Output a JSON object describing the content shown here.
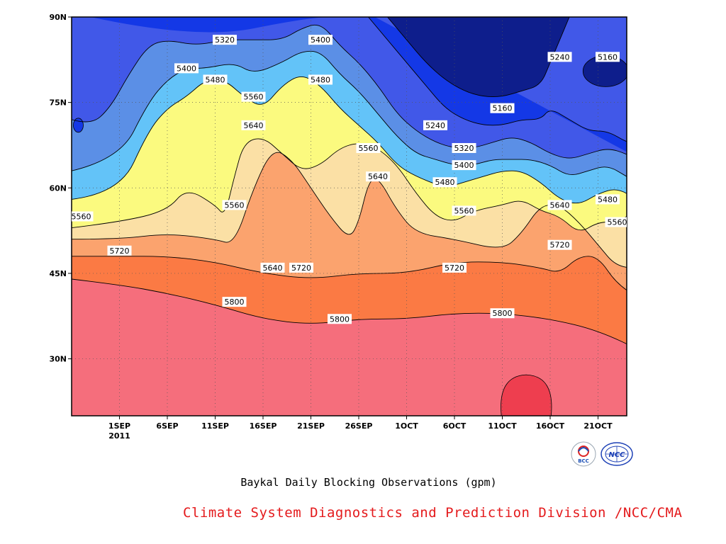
{
  "chart_data": {
    "type": "contour",
    "caption": "Baykal Daily Blocking Observations (gpm)",
    "xlabel": "",
    "ylabel": "",
    "x_ticks": [
      "1SEP",
      "6SEP",
      "11SEP",
      "16SEP",
      "21SEP",
      "26SEP",
      "1OCT",
      "6OCT",
      "11OCT",
      "16OCT",
      "21OCT"
    ],
    "x_year": "2011",
    "y_ticks": [
      "90N",
      "75N",
      "60N",
      "45N",
      "30N"
    ],
    "y_tick_values": [
      90,
      75,
      60,
      45,
      30
    ],
    "x_range_days": [
      -5,
      53
    ],
    "y_range_lat": [
      20,
      90
    ],
    "levels": [
      5160,
      5240,
      5320,
      5400,
      5480,
      5560,
      5640,
      5720,
      5800,
      5880
    ],
    "colors": {
      "band_top": "#0a237a",
      "5160": "#0e1e8c",
      "5240": "#1438e6",
      "5320": "#4158e8",
      "5400": "#5b8fe6",
      "5480": "#63c3f8",
      "5560": "#fbfa7f",
      "5640": "#fbe0a5",
      "5720": "#fba36e",
      "5800": "#fb7a44",
      "5880": "#f56e7c",
      "max": "#ee3e4f",
      "contour_line": "#000000"
    },
    "contours": [
      {
        "level": 5800,
        "points": [
          [
            -5,
            44
          ],
          [
            0,
            43
          ],
          [
            5,
            41.5
          ],
          [
            10,
            39.5
          ],
          [
            15,
            37
          ],
          [
            20,
            36
          ],
          [
            25,
            37
          ],
          [
            30,
            37
          ],
          [
            35,
            38
          ],
          [
            40,
            38
          ],
          [
            45,
            37
          ],
          [
            50,
            35
          ],
          [
            55,
            31
          ],
          [
            58,
            29
          ]
        ]
      },
      {
        "level": 5720,
        "points": [
          [
            -5,
            48
          ],
          [
            0,
            48
          ],
          [
            5,
            48
          ],
          [
            10,
            47
          ],
          [
            15,
            45
          ],
          [
            20,
            44
          ],
          [
            25,
            45
          ],
          [
            30,
            45
          ],
          [
            35,
            47
          ],
          [
            40,
            47
          ],
          [
            44,
            46
          ],
          [
            46,
            45
          ],
          [
            48,
            48
          ],
          [
            50,
            48
          ],
          [
            52,
            43
          ],
          [
            55,
            40
          ],
          [
            58,
            39
          ]
        ]
      },
      {
        "level": 5640,
        "points": [
          [
            -5,
            51
          ],
          [
            0,
            51
          ],
          [
            5,
            52
          ],
          [
            10,
            51
          ],
          [
            12,
            50
          ],
          [
            14,
            60
          ],
          [
            16,
            67
          ],
          [
            18,
            65
          ],
          [
            20,
            60
          ],
          [
            22,
            55
          ],
          [
            24,
            51
          ],
          [
            25,
            54
          ],
          [
            26,
            61
          ],
          [
            27,
            62
          ],
          [
            29,
            56
          ],
          [
            31,
            52
          ],
          [
            35,
            51
          ],
          [
            40,
            49
          ],
          [
            42,
            52
          ],
          [
            44,
            57
          ],
          [
            46,
            57
          ],
          [
            48,
            54
          ],
          [
            50,
            50
          ],
          [
            52,
            46
          ],
          [
            55,
            46
          ],
          [
            58,
            45
          ]
        ]
      },
      {
        "level": 5560,
        "points": [
          [
            -5,
            53
          ],
          [
            0,
            54
          ],
          [
            5,
            56
          ],
          [
            7,
            60
          ],
          [
            10,
            57
          ],
          [
            11,
            55
          ],
          [
            12,
            62
          ],
          [
            13,
            68
          ],
          [
            15,
            69
          ],
          [
            17,
            66
          ],
          [
            19,
            63
          ],
          [
            21,
            64
          ],
          [
            23,
            67
          ],
          [
            25,
            68
          ],
          [
            27,
            67
          ],
          [
            29,
            64
          ],
          [
            31,
            59
          ],
          [
            33,
            55
          ],
          [
            35,
            54
          ],
          [
            37,
            56
          ],
          [
            40,
            57
          ],
          [
            42,
            58
          ],
          [
            44,
            56
          ],
          [
            46,
            55
          ],
          [
            48,
            52
          ],
          [
            50,
            54
          ],
          [
            52,
            54
          ],
          [
            54,
            56
          ],
          [
            55,
            55
          ],
          [
            58,
            54
          ]
        ]
      },
      {
        "level": 5480,
        "points": [
          [
            -5,
            58
          ],
          [
            0,
            59
          ],
          [
            3,
            70
          ],
          [
            5,
            74
          ],
          [
            7,
            76
          ],
          [
            9,
            79
          ],
          [
            11,
            79
          ],
          [
            13,
            76
          ],
          [
            15,
            74
          ],
          [
            17,
            78
          ],
          [
            19,
            80
          ],
          [
            21,
            78
          ],
          [
            23,
            74
          ],
          [
            25,
            71
          ],
          [
            27,
            68
          ],
          [
            29,
            64
          ],
          [
            31,
            62
          ],
          [
            34,
            60
          ],
          [
            36,
            61
          ],
          [
            38,
            62
          ],
          [
            40,
            63
          ],
          [
            42,
            63
          ],
          [
            44,
            61
          ],
          [
            46,
            58
          ],
          [
            48,
            57
          ],
          [
            50,
            59
          ],
          [
            52,
            60
          ],
          [
            54,
            58
          ],
          [
            56,
            57
          ],
          [
            58,
            56
          ]
        ]
      },
      {
        "level": 5400,
        "points": [
          [
            -5,
            63
          ],
          [
            0,
            65
          ],
          [
            3,
            75
          ],
          [
            5,
            79
          ],
          [
            7,
            81
          ],
          [
            9,
            81
          ],
          [
            12,
            82
          ],
          [
            14,
            80
          ],
          [
            17,
            82
          ],
          [
            19,
            84
          ],
          [
            21,
            84
          ],
          [
            23,
            80
          ],
          [
            25,
            77
          ],
          [
            27,
            73
          ],
          [
            29,
            69
          ],
          [
            31,
            66
          ],
          [
            33,
            65
          ],
          [
            35,
            64
          ],
          [
            37,
            64
          ],
          [
            39,
            65
          ],
          [
            41,
            65
          ],
          [
            43,
            65
          ],
          [
            45,
            64
          ],
          [
            47,
            62
          ],
          [
            49,
            63
          ],
          [
            51,
            64
          ],
          [
            53,
            62
          ],
          [
            55,
            60
          ],
          [
            57,
            59
          ],
          [
            58,
            58
          ]
        ]
      },
      {
        "level": 5320,
        "points": [
          [
            -5,
            72
          ],
          [
            -3,
            71
          ],
          [
            -1,
            74
          ],
          [
            1,
            80
          ],
          [
            3,
            85
          ],
          [
            5,
            86
          ],
          [
            8,
            85
          ],
          [
            11,
            86
          ],
          [
            14,
            86
          ],
          [
            17,
            86
          ],
          [
            19,
            88
          ],
          [
            21,
            89
          ],
          [
            23,
            85
          ],
          [
            25,
            82
          ],
          [
            27,
            78
          ],
          [
            29,
            73
          ],
          [
            31,
            70
          ],
          [
            33,
            68
          ],
          [
            35,
            67
          ],
          [
            37,
            67
          ],
          [
            39,
            68
          ],
          [
            41,
            69
          ],
          [
            43,
            68
          ],
          [
            45,
            66
          ],
          [
            47,
            65
          ],
          [
            49,
            66
          ],
          [
            51,
            67
          ],
          [
            53,
            66
          ],
          [
            55,
            64
          ],
          [
            57,
            63
          ],
          [
            58,
            62
          ]
        ]
      },
      {
        "level": 5240,
        "points": [
          [
            26,
            90
          ],
          [
            28,
            86
          ],
          [
            30,
            82
          ],
          [
            32,
            78
          ],
          [
            34,
            74
          ],
          [
            36,
            72
          ],
          [
            38,
            71
          ],
          [
            40,
            71
          ],
          [
            42,
            72
          ],
          [
            44,
            72
          ],
          [
            45,
            74
          ],
          [
            47,
            72
          ],
          [
            49,
            70
          ],
          [
            51,
            70
          ],
          [
            53,
            68
          ],
          [
            55,
            67
          ],
          [
            58,
            66
          ]
        ]
      },
      {
        "level": 5160,
        "points": [
          [
            28,
            90
          ],
          [
            30,
            86
          ],
          [
            32,
            82
          ],
          [
            34,
            79
          ],
          [
            36,
            77
          ],
          [
            38,
            76
          ],
          [
            40,
            76
          ],
          [
            42,
            77
          ],
          [
            44,
            78
          ],
          [
            45,
            82
          ],
          [
            46,
            86
          ],
          [
            47,
            90
          ]
        ]
      }
    ],
    "contour_labels": [
      {
        "text": "5320",
        "day": 11,
        "lat": 86
      },
      {
        "text": "5400",
        "day": 7,
        "lat": 81
      },
      {
        "text": "5480",
        "day": 10,
        "lat": 79
      },
      {
        "text": "5400",
        "day": 21,
        "lat": 86
      },
      {
        "text": "5480",
        "day": 21,
        "lat": 79
      },
      {
        "text": "5560",
        "day": 14,
        "lat": 76
      },
      {
        "text": "5640",
        "day": 14,
        "lat": 71
      },
      {
        "text": "5560",
        "day": 26,
        "lat": 67
      },
      {
        "text": "5640",
        "day": 27,
        "lat": 62
      },
      {
        "text": "5560",
        "day": 12,
        "lat": 57
      },
      {
        "text": "5560",
        "day": -4,
        "lat": 55
      },
      {
        "text": "5720",
        "day": 0,
        "lat": 49
      },
      {
        "text": "5640",
        "day": 16,
        "lat": 46
      },
      {
        "text": "5720",
        "day": 19,
        "lat": 46
      },
      {
        "text": "5720",
        "day": 35,
        "lat": 46
      },
      {
        "text": "5800",
        "day": 12,
        "lat": 40
      },
      {
        "text": "5800",
        "day": 23,
        "lat": 37
      },
      {
        "text": "5800",
        "day": 40,
        "lat": 38
      },
      {
        "text": "5240",
        "day": 33,
        "lat": 71
      },
      {
        "text": "5160",
        "day": 40,
        "lat": 74
      },
      {
        "text": "5240",
        "day": 46,
        "lat": 83
      },
      {
        "text": "5160",
        "day": 51,
        "lat": 83
      },
      {
        "text": "5320",
        "day": 36,
        "lat": 67
      },
      {
        "text": "5400",
        "day": 36,
        "lat": 64
      },
      {
        "text": "5480",
        "day": 34,
        "lat": 61
      },
      {
        "text": "5560",
        "day": 36,
        "lat": 56
      },
      {
        "text": "5640",
        "day": 46,
        "lat": 57
      },
      {
        "text": "5720",
        "day": 46,
        "lat": 50
      },
      {
        "text": "5480",
        "day": 51,
        "lat": 58
      },
      {
        "text": "5560",
        "day": 52,
        "lat": 54
      },
      {
        "text": "5320",
        "day": 55,
        "lat": 67
      },
      {
        "text": "5400",
        "day": 55,
        "lat": 64
      }
    ],
    "max_region": {
      "day": 42.5,
      "lat": 23
    }
  },
  "credit": "Climate System Diagnostics and Prediction Division /NCC/CMA",
  "logos": {
    "bcc": "BCC",
    "ncc": "NCC"
  }
}
